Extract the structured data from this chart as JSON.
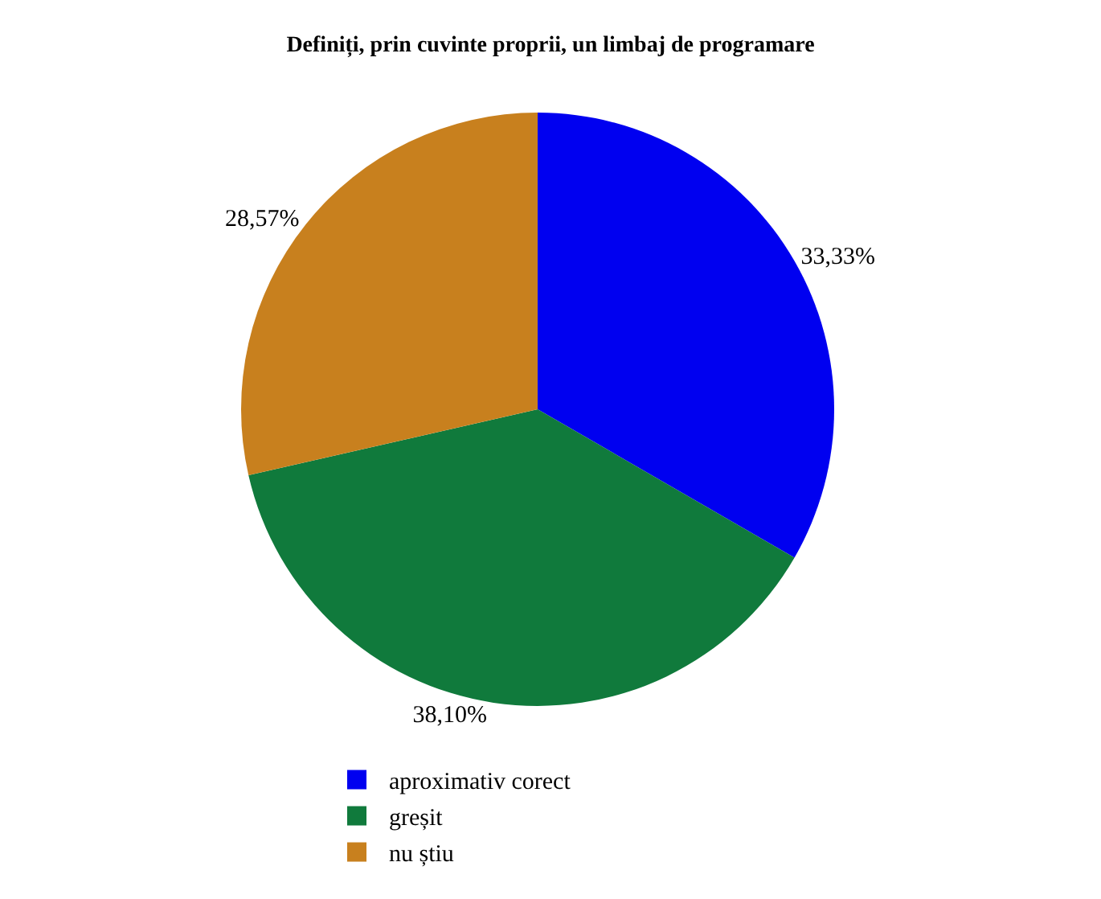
{
  "chart_data": {
    "type": "pie",
    "title": "Definiți, prin cuvinte proprii, un limbaj de programare",
    "categories": [
      "aproximativ corect",
      "greșit",
      "nu știu"
    ],
    "values": [
      33.33,
      38.1,
      28.57
    ],
    "value_labels": [
      "33,33%",
      "38,10%",
      "28,57%"
    ],
    "colors": [
      "#0000f0",
      "#107a3c",
      "#c8801e"
    ],
    "legend": "bottom"
  }
}
